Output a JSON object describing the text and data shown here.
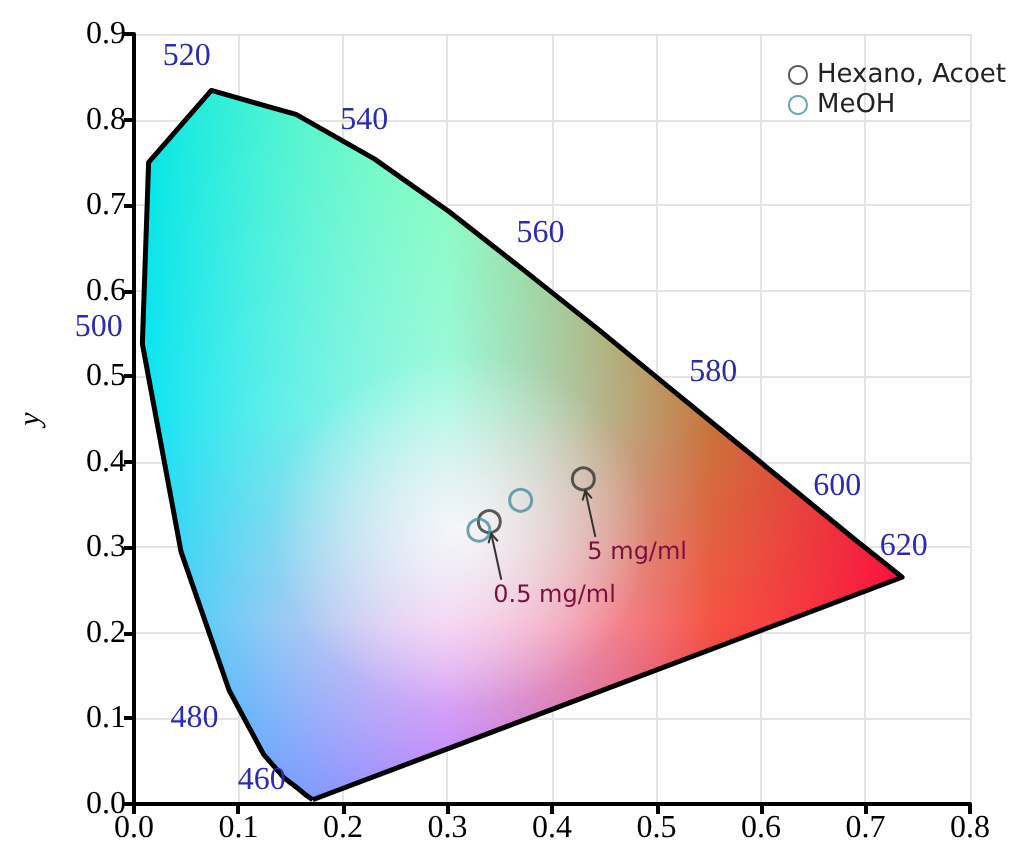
{
  "chart_data": {
    "type": "scatter",
    "ylabel": "y",
    "xlim": [
      0,
      0.8
    ],
    "xticks": [
      {
        "value": 0,
        "label": "0.0"
      },
      0.1,
      0.2,
      0.3,
      0.4,
      0.5,
      0.6,
      0.7,
      0.8
    ],
    "ylim": [
      0,
      0.9
    ],
    "yticks": [
      {
        "value": 0,
        "label": "0.0"
      },
      0.1,
      0.2,
      0.3,
      0.4,
      0.5,
      0.6,
      0.7,
      0.8,
      0.9
    ],
    "grid": true,
    "legend": "top right",
    "series": [
      {
        "type": "area",
        "marker": "none",
        "color": "#000000",
        "x": [
          0.171,
          0.164,
          0.157,
          0.144,
          0.124,
          0.091,
          0.045,
          0.008,
          0.014,
          0.074,
          0.155,
          0.23,
          0.302,
          0.373,
          0.444,
          0.512,
          0.575,
          0.627,
          0.691,
          0.719,
          0.735,
          0.171
        ],
        "values": [
          0.005,
          0.011,
          0.018,
          0.03,
          0.058,
          0.133,
          0.295,
          0.538,
          0.75,
          0.834,
          0.806,
          0.754,
          0.692,
          0.624,
          0.555,
          0.487,
          0.424,
          0.372,
          0.308,
          0.281,
          0.265,
          0.005
        ]
      },
      {
        "name": "Hexano, Acoet",
        "marker": "circle",
        "color": "#333333",
        "x": [
          0.43,
          0.34
        ],
        "values": [
          0.38,
          0.33
        ]
      },
      {
        "name": "MeOH",
        "marker": "circle",
        "color": "#4a8fa0",
        "x": [
          0.37,
          0.33
        ],
        "values": [
          0.355,
          0.32
        ]
      }
    ],
    "annotations": [
      {
        "text": "460",
        "x": 0.144,
        "y": 0.03
      },
      {
        "text": "480",
        "x": 0.091,
        "y": 0.133
      },
      {
        "text": "500",
        "x": 0.008,
        "y": 0.538
      },
      {
        "text": "520",
        "x": 0.074,
        "y": 0.834
      },
      {
        "text": "540",
        "x": 0.23,
        "y": 0.754
      },
      {
        "text": "560",
        "x": 0.373,
        "y": 0.624
      },
      {
        "text": "580",
        "x": 0.512,
        "y": 0.487
      },
      {
        "text": "600",
        "x": 0.627,
        "y": 0.372
      },
      {
        "text": "620",
        "x": 0.691,
        "y": 0.308
      },
      {
        "text": "5 mg/ml",
        "x": 0.43,
        "y": 0.38
      },
      {
        "text": "0.5 mg/ml",
        "x": 0.34,
        "y": 0.33
      }
    ]
  }
}
